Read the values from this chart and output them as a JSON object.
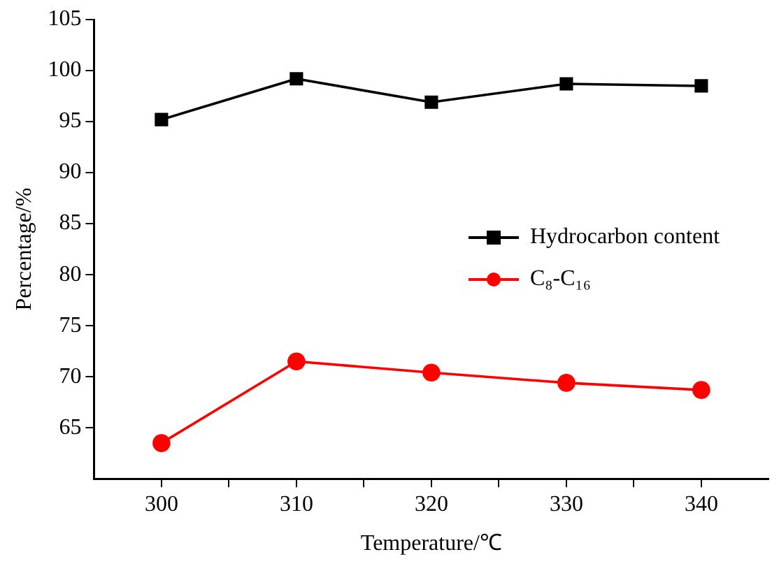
{
  "chart_data": {
    "type": "line",
    "xlabel": "Temperature/℃",
    "ylabel": "Percentage/%",
    "x": [
      300,
      310,
      320,
      330,
      340
    ],
    "xlim": [
      295,
      345
    ],
    "xticks": [
      300,
      {
        "value": 305,
        "label": null
      },
      310,
      {
        "value": 315,
        "label": null
      },
      320,
      {
        "value": 325,
        "label": null
      },
      330,
      {
        "value": 335,
        "label": null
      },
      340
    ],
    "ylim": [
      60,
      105
    ],
    "yticks": [
      65,
      70,
      75,
      80,
      85,
      90,
      95,
      100,
      105
    ],
    "series": [
      {
        "name": "Hydrocarbon content",
        "color": "#000000",
        "marker": "square",
        "values": [
          95.2,
          99.2,
          96.9,
          98.7,
          98.5
        ]
      },
      {
        "name": "C₈-C₁₆",
        "color": "#ff0000",
        "marker": "circle",
        "values": [
          63.5,
          71.5,
          70.4,
          69.4,
          68.7
        ]
      }
    ],
    "grid": false,
    "legend": "right",
    "line_style": "solid"
  }
}
